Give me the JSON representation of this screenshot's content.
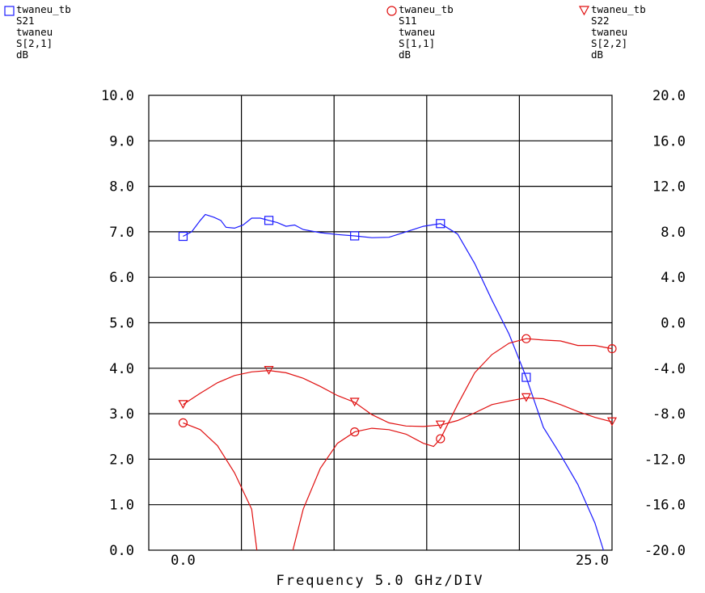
{
  "legend": [
    {
      "dataset": "twaneu_tb",
      "trace": "S21",
      "design": "twaneu",
      "expr": "S[2,1]",
      "unit": "dB",
      "marker": "square",
      "color": "#1a1aff"
    },
    {
      "dataset": "twaneu_tb",
      "trace": "S11",
      "design": "twaneu",
      "expr": "S[1,1]",
      "unit": "dB",
      "marker": "circle",
      "color": "#e01010"
    },
    {
      "dataset": "twaneu_tb",
      "trace": "S22",
      "design": "twaneu",
      "expr": "S[2,2]",
      "unit": "dB",
      "marker": "triangle-down",
      "color": "#e01010"
    }
  ],
  "chart_data": {
    "type": "line",
    "xlabel": "Frequency 5.0 GHz/DIV",
    "x_tick_labels": [
      "0.0",
      "25.0"
    ],
    "xlim": [
      -2,
      25
    ],
    "left_axis": {
      "ylim": [
        0,
        10
      ],
      "tick_labels": [
        "10.0",
        "9.0",
        "8.0",
        "7.0",
        "6.0",
        "5.0",
        "4.0",
        "3.0",
        "2.0",
        "1.0",
        "0.0"
      ]
    },
    "right_axis": {
      "ylim": [
        -20,
        20
      ],
      "tick_labels": [
        "20.0",
        "16.0",
        "12.0",
        "8.0",
        "4.0",
        "0.0",
        "-4.0",
        "-8.0",
        "-12.0",
        "-16.0",
        "-20.0"
      ]
    },
    "grid": true,
    "series": [
      {
        "name": "S21",
        "axis": "left",
        "color": "#1a1aff",
        "marker": "square",
        "x": [
          0,
          0.5,
          1,
          1.3,
          1.8,
          2.2,
          2.5,
          3,
          3.5,
          4,
          4.5,
          5,
          5.5,
          6,
          6.5,
          7,
          8,
          9,
          10,
          11,
          12,
          13,
          14,
          15,
          16,
          17,
          18,
          19,
          20,
          21,
          22,
          23,
          24,
          24.5
        ],
        "y": [
          6.9,
          7.0,
          7.25,
          7.38,
          7.32,
          7.25,
          7.1,
          7.08,
          7.15,
          7.3,
          7.3,
          7.25,
          7.2,
          7.12,
          7.15,
          7.05,
          6.98,
          6.94,
          6.91,
          6.87,
          6.88,
          7.0,
          7.12,
          7.18,
          6.95,
          6.3,
          5.5,
          4.75,
          3.8,
          2.7,
          2.1,
          1.45,
          0.6,
          0.0
        ],
        "markers_x": [
          0,
          5,
          10,
          15,
          20
        ]
      },
      {
        "name": "S11",
        "axis": "left",
        "color": "#e01010",
        "marker": "circle",
        "x": [
          0,
          1,
          2,
          3,
          4,
          4.3,
          6.4,
          7,
          8,
          9,
          10,
          11,
          12,
          13,
          14,
          14.6,
          15,
          16,
          17,
          18,
          19,
          20,
          21,
          22,
          23,
          24,
          25
        ],
        "y": [
          2.8,
          2.65,
          2.3,
          1.7,
          0.9,
          0.0,
          0.0,
          0.9,
          1.8,
          2.35,
          2.6,
          2.68,
          2.65,
          2.55,
          2.35,
          2.28,
          2.45,
          3.2,
          3.9,
          4.3,
          4.55,
          4.65,
          4.62,
          4.6,
          4.5,
          4.5,
          4.43
        ],
        "markers_x": [
          0,
          10,
          15,
          20,
          25
        ]
      },
      {
        "name": "S22",
        "axis": "left",
        "color": "#e01010",
        "marker": "triangle-down",
        "x": [
          0,
          1,
          2,
          3,
          4,
          5,
          6,
          7,
          8,
          9,
          10,
          11,
          12,
          13,
          14,
          15,
          16,
          17,
          18,
          19,
          20,
          21,
          22,
          23,
          24,
          25
        ],
        "y": [
          3.2,
          3.45,
          3.68,
          3.84,
          3.92,
          3.95,
          3.9,
          3.78,
          3.6,
          3.4,
          3.25,
          2.98,
          2.8,
          2.73,
          2.72,
          2.75,
          2.85,
          3.02,
          3.2,
          3.28,
          3.35,
          3.33,
          3.2,
          3.05,
          2.92,
          2.82
        ],
        "markers_x": [
          0,
          5,
          10,
          15,
          20,
          25
        ]
      }
    ]
  }
}
